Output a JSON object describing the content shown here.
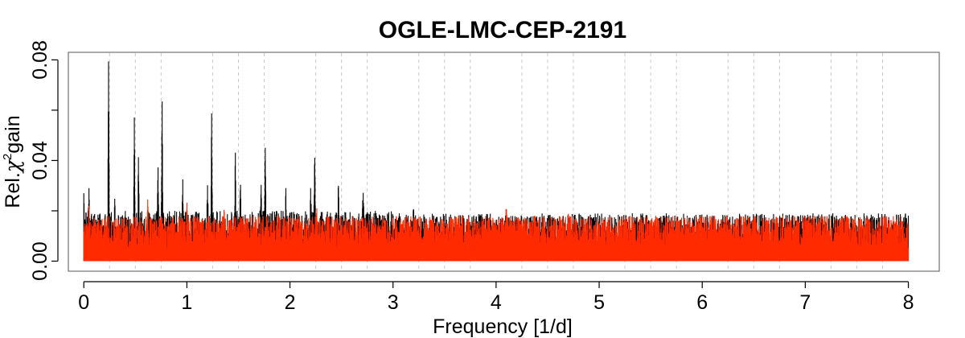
{
  "chart_data": {
    "type": "line",
    "title": "OGLE-LMC-CEP-2191",
    "xlabel": "Frequency [1/d]",
    "ylabel_prefix": "Rel.",
    "ylabel_symbol": "χ",
    "ylabel_superscript": "2",
    "ylabel_suffix": "gain",
    "xlim": [
      -0.15,
      8.3
    ],
    "ylim": [
      -0.004,
      0.083
    ],
    "x_ticks": [
      0,
      1,
      2,
      3,
      4,
      5,
      6,
      7,
      8
    ],
    "x_tick_labels": [
      "0",
      "1",
      "2",
      "3",
      "4",
      "5",
      "6",
      "7",
      "8"
    ],
    "y_ticks": [
      0.0,
      0.04,
      0.08
    ],
    "y_tick_labels": [
      "0.00",
      "0.04",
      "0.08"
    ],
    "grid": "vertical dashed every 0.25 1/d",
    "colors": {
      "black_series": "#000000",
      "red_series": "#ff2a00"
    },
    "series": [
      {
        "color": "#000000",
        "noise_floor": 0.011,
        "noise_range_high_freq": [
          0.004,
          0.019
        ],
        "peaks": [
          {
            "x": 0.0,
            "y": 0.027
          },
          {
            "x": 0.05,
            "y": 0.029
          },
          {
            "x": 0.24,
            "y": 0.08
          },
          {
            "x": 0.3,
            "y": 0.025
          },
          {
            "x": 0.49,
            "y": 0.058
          },
          {
            "x": 0.53,
            "y": 0.042
          },
          {
            "x": 0.72,
            "y": 0.038
          },
          {
            "x": 0.76,
            "y": 0.065
          },
          {
            "x": 0.96,
            "y": 0.033
          },
          {
            "x": 1.2,
            "y": 0.031
          },
          {
            "x": 1.24,
            "y": 0.061
          },
          {
            "x": 1.47,
            "y": 0.045
          },
          {
            "x": 1.52,
            "y": 0.032
          },
          {
            "x": 1.72,
            "y": 0.032
          },
          {
            "x": 1.76,
            "y": 0.047
          },
          {
            "x": 1.96,
            "y": 0.03
          },
          {
            "x": 2.2,
            "y": 0.03
          },
          {
            "x": 2.24,
            "y": 0.044
          },
          {
            "x": 2.47,
            "y": 0.032
          },
          {
            "x": 2.71,
            "y": 0.029
          },
          {
            "x": 3.2,
            "y": 0.022
          },
          {
            "x": 7.57,
            "y": 0.019
          }
        ]
      },
      {
        "color": "#ff2a00",
        "noise_floor": 0.012,
        "noise_range_high_freq": [
          0.004,
          0.018
        ],
        "peaks": [
          {
            "x": 0.05,
            "y": 0.022
          },
          {
            "x": 0.62,
            "y": 0.025
          },
          {
            "x": 1.0,
            "y": 0.024
          },
          {
            "x": 1.36,
            "y": 0.021
          },
          {
            "x": 2.26,
            "y": 0.022
          },
          {
            "x": 4.1,
            "y": 0.023
          },
          {
            "x": 4.7,
            "y": 0.019
          },
          {
            "x": 6.12,
            "y": 0.019
          },
          {
            "x": 7.62,
            "y": 0.017
          }
        ]
      }
    ]
  }
}
